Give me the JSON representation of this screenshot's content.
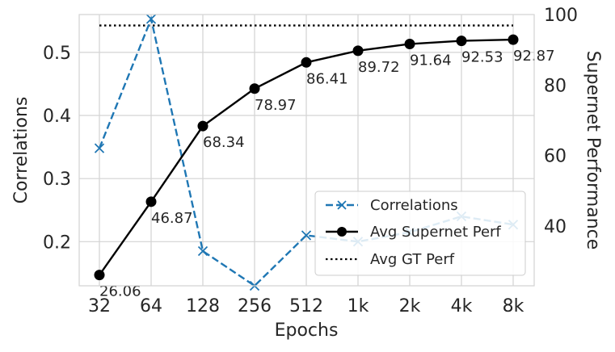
{
  "chart_data": {
    "type": "line",
    "xlabel": "Epochs",
    "categories": [
      "32",
      "64",
      "128",
      "256",
      "512",
      "1k",
      "2k",
      "4k",
      "8k"
    ],
    "left_axis": {
      "label": "Correlations",
      "ylim": [
        0.13,
        0.56
      ],
      "ticks": [
        0.2,
        0.3,
        0.4,
        0.5
      ],
      "tick_labels": [
        "0.2",
        "0.3",
        "0.4",
        "0.5"
      ]
    },
    "right_axis": {
      "label": "Supernet Performance",
      "ylim": [
        23,
        100
      ],
      "ticks": [
        40,
        60,
        80,
        100
      ],
      "tick_labels": [
        "40",
        "60",
        "80",
        "100"
      ]
    },
    "grid": true,
    "legend_position": "lower-right",
    "series": [
      {
        "name": "Correlations",
        "axis": "left",
        "color": "#1f77b4",
        "line_style": "dashed",
        "marker": "x",
        "values": [
          0.348,
          0.553,
          0.185,
          0.13,
          0.21,
          0.2,
          0.215,
          0.24,
          0.227
        ]
      },
      {
        "name": "Avg Supernet Perf",
        "axis": "right",
        "color": "#000000",
        "line_style": "solid",
        "marker": "circle",
        "values": [
          26.06,
          46.87,
          68.34,
          78.97,
          86.41,
          89.72,
          91.64,
          92.53,
          92.87
        ],
        "data_labels": [
          "26.06",
          "46.87",
          "68.34",
          "78.97",
          "86.41",
          "89.72",
          "91.64",
          "92.53",
          "92.87"
        ]
      },
      {
        "name": "Avg GT Perf",
        "axis": "right",
        "color": "#000000",
        "line_style": "dotted",
        "marker": "none",
        "values": [
          96.9,
          96.9,
          96.9,
          96.9,
          96.9,
          96.9,
          96.9,
          96.9,
          96.9
        ]
      }
    ]
  }
}
